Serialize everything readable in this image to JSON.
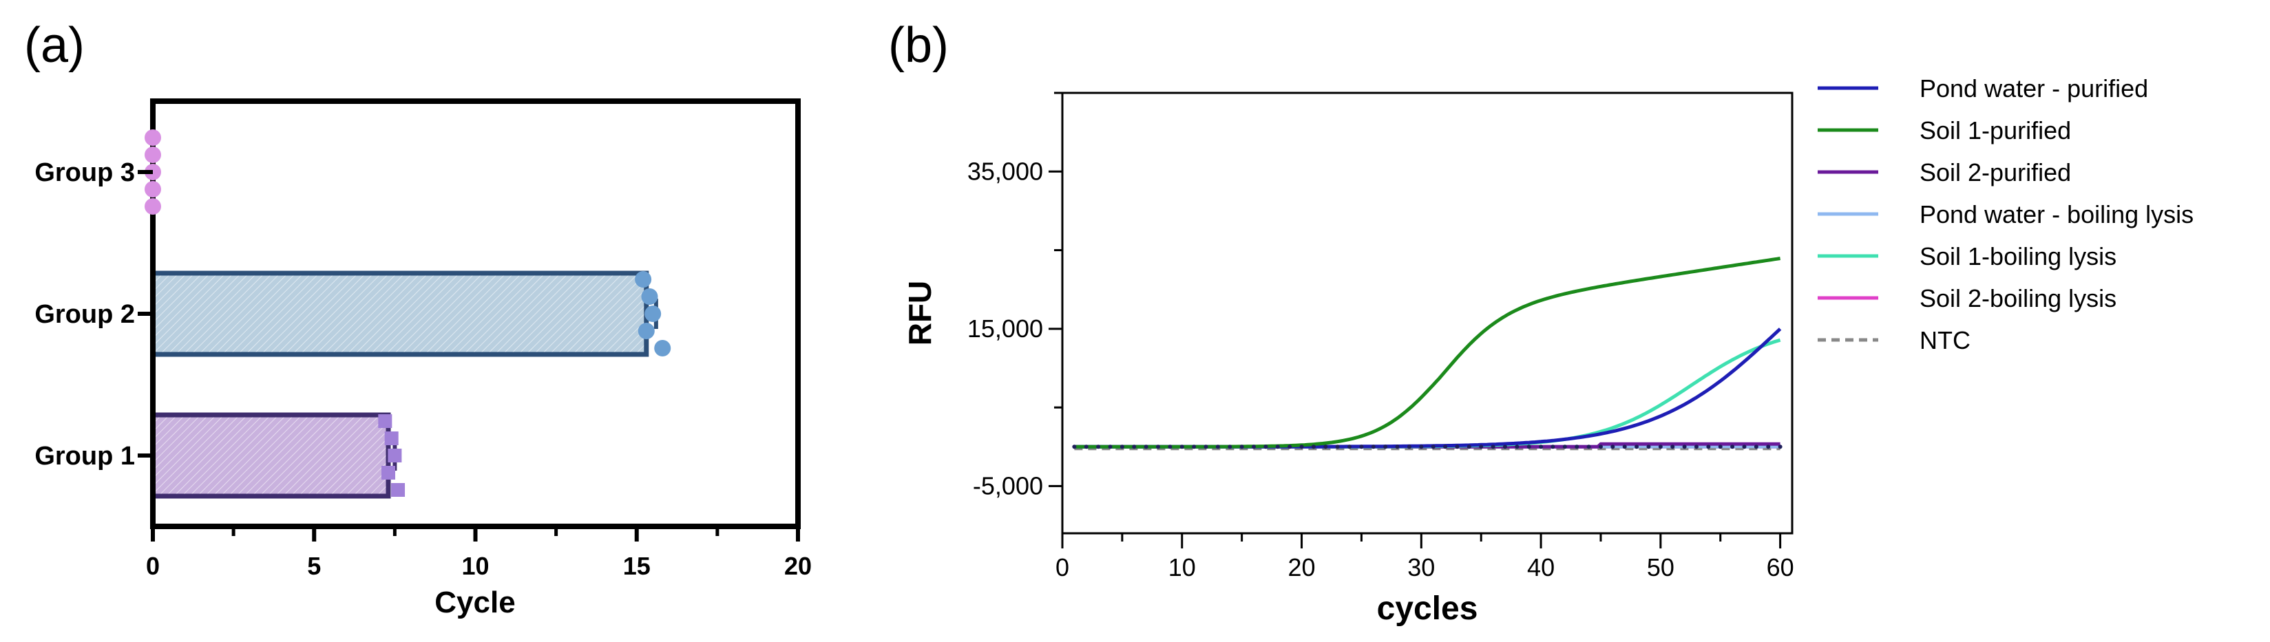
{
  "chart_data": [
    {
      "panel": "(a)",
      "type": "bar",
      "orientation": "horizontal",
      "categories": [
        "Group 1",
        "Group 2",
        "Group 3"
      ],
      "values": [
        7.3,
        15.3,
        0.0
      ],
      "errors": [
        0.2,
        0.3,
        0.0
      ],
      "points": [
        [
          7.2,
          7.4,
          7.5,
          7.3,
          7.6
        ],
        [
          15.2,
          15.4,
          15.5,
          15.3,
          15.8
        ],
        [
          0.0,
          0.0,
          0.0,
          0.0,
          0.0
        ]
      ],
      "bar_colors": [
        "#c9b2de",
        "#b9cfdf",
        "#e0b8e4"
      ],
      "edge_colors": [
        "#3f2d6e",
        "#2c4f78",
        "#cc88dd"
      ],
      "point_colors": [
        "#a080d8",
        "#6a9ed1",
        "#d890e2"
      ],
      "xlabel": "Cycle",
      "xticks": [
        "0",
        "5",
        "10",
        "15",
        "20"
      ],
      "xlim": [
        0,
        20
      ]
    },
    {
      "panel": "(b)",
      "type": "line",
      "xlabel": "cycles",
      "ylabel": "RFU",
      "xlim": [
        0,
        61
      ],
      "ylim": [
        -11000,
        45000
      ],
      "xticks": [
        "0",
        "10",
        "20",
        "30",
        "40",
        "50",
        "60"
      ],
      "yticks": [
        "35,000",
        "15,000",
        "-5,000"
      ],
      "ytick_values": [
        35000,
        15000,
        -5000
      ],
      "baseline": 0,
      "series": [
        {
          "name": "Pond water - purified",
          "color": "#1e1eb5",
          "style": "solid",
          "curve": {
            "type": "rise",
            "max": 30000,
            "mid": 60,
            "k": 0.19
          }
        },
        {
          "name": "Soil 1-purified",
          "color": "#1b8a1b",
          "style": "solid",
          "curve": {
            "type": "sigmoid",
            "max": 17400,
            "mid": 31.5,
            "k": 0.38,
            "drift": 230
          }
        },
        {
          "name": "Soil 2-purified",
          "color": "#6a1a9a",
          "style": "solid",
          "curve": {
            "type": "flat",
            "value": 350,
            "start": 45
          }
        },
        {
          "name": "Pond water - boiling lysis",
          "color": "#8fb8f0",
          "style": "solid",
          "curve": {
            "type": "flat",
            "value": 0
          }
        },
        {
          "name": "Soil 1-boiling lysis",
          "color": "#3fe0b0",
          "style": "solid",
          "curve": {
            "type": "sigmoid",
            "max": 15500,
            "mid": 52.5,
            "k": 0.26
          }
        },
        {
          "name": "Soil 2-boiling lysis",
          "color": "#e040c8",
          "style": "solid",
          "curve": {
            "type": "flat",
            "value": 0
          }
        },
        {
          "name": "NTC",
          "color": "#888888",
          "style": "dashed",
          "curve": {
            "type": "flat",
            "value": -300
          }
        }
      ]
    }
  ]
}
